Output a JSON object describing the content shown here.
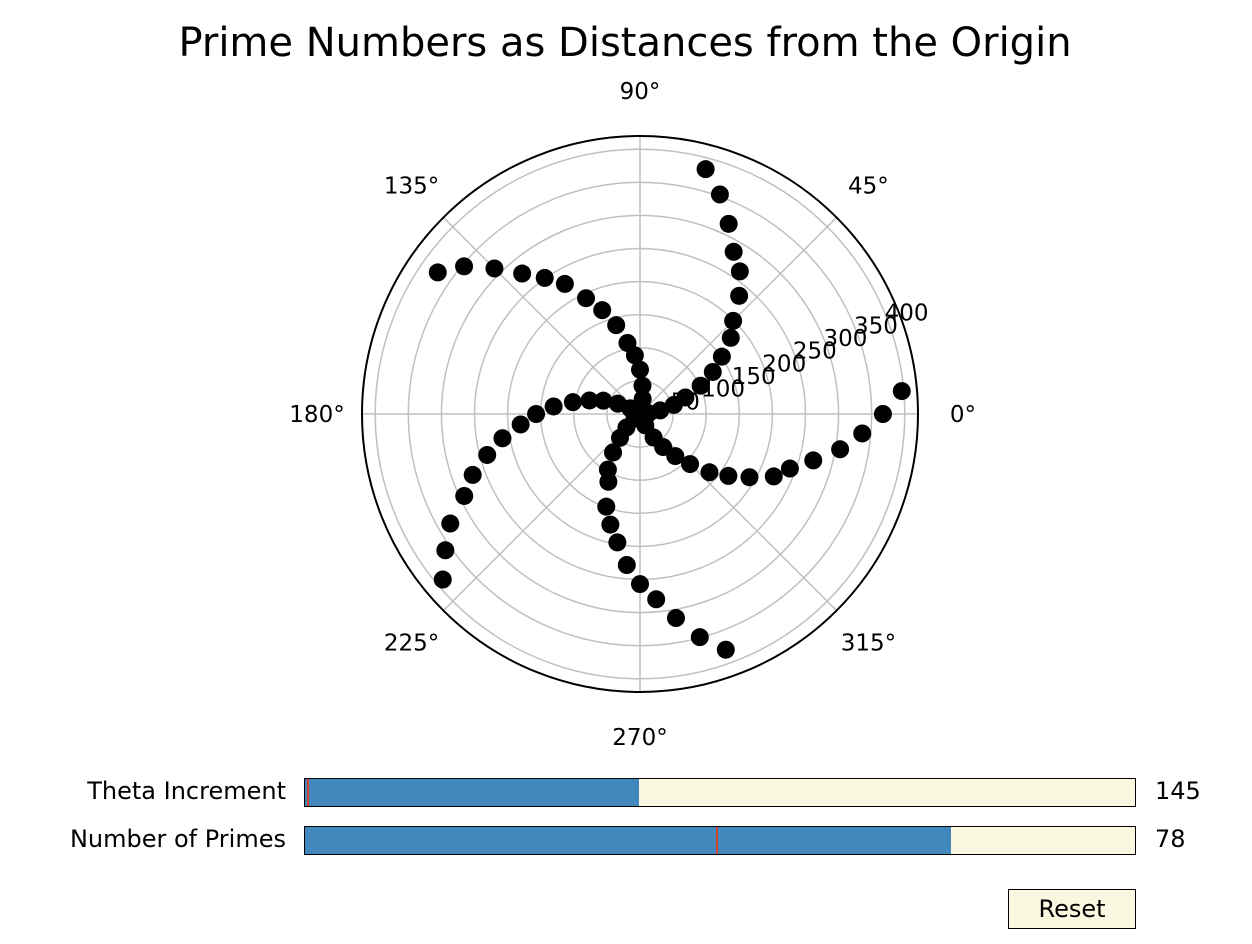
{
  "chart_data": {
    "type": "scatter",
    "projection": "polar",
    "title": "Prime Numbers as Distances from the Origin",
    "theta_tick_labels": [
      "0°",
      "45°",
      "90°",
      "135°",
      "180°",
      "225°",
      "270°",
      "315°"
    ],
    "r_tick_labels": [
      "50",
      "100",
      "150",
      "200",
      "250",
      "300",
      "350",
      "400"
    ],
    "rlim": [
      0,
      420
    ],
    "grid": true,
    "marker_color": "#000000",
    "theta_increment_deg": 145,
    "series": [
      {
        "values": [
          2,
          3,
          5,
          7,
          11,
          13,
          17,
          19,
          23,
          29,
          31,
          37,
          41,
          43,
          47,
          53,
          59,
          61,
          67,
          71,
          73,
          79,
          83,
          89,
          97,
          101,
          103,
          107,
          109,
          113,
          127,
          131,
          137,
          139,
          149,
          151,
          157,
          163,
          167,
          173,
          179,
          181,
          191,
          193,
          197,
          199,
          211,
          223,
          227,
          229,
          233,
          239,
          241,
          251,
          257,
          263,
          269,
          271,
          277,
          281,
          283,
          293,
          307,
          311,
          313,
          317,
          331,
          337,
          347,
          349,
          353,
          359,
          367,
          373,
          379,
          383,
          389,
          397
        ]
      }
    ]
  },
  "controls": {
    "theta_increment": {
      "label": "Theta Increment",
      "value": "145",
      "fill_fraction": 0.403,
      "initial_fraction": 0.002
    },
    "number_of_primes": {
      "label": "Number of Primes",
      "value": "78",
      "fill_fraction": 0.778,
      "initial_fraction": 0.495
    },
    "reset_label": "Reset"
  },
  "colors": {
    "slider_fill": "#4189bc",
    "slider_track": "#faf8e0",
    "initial_marker": "#d4422c",
    "grid": "#c0c0c0"
  }
}
